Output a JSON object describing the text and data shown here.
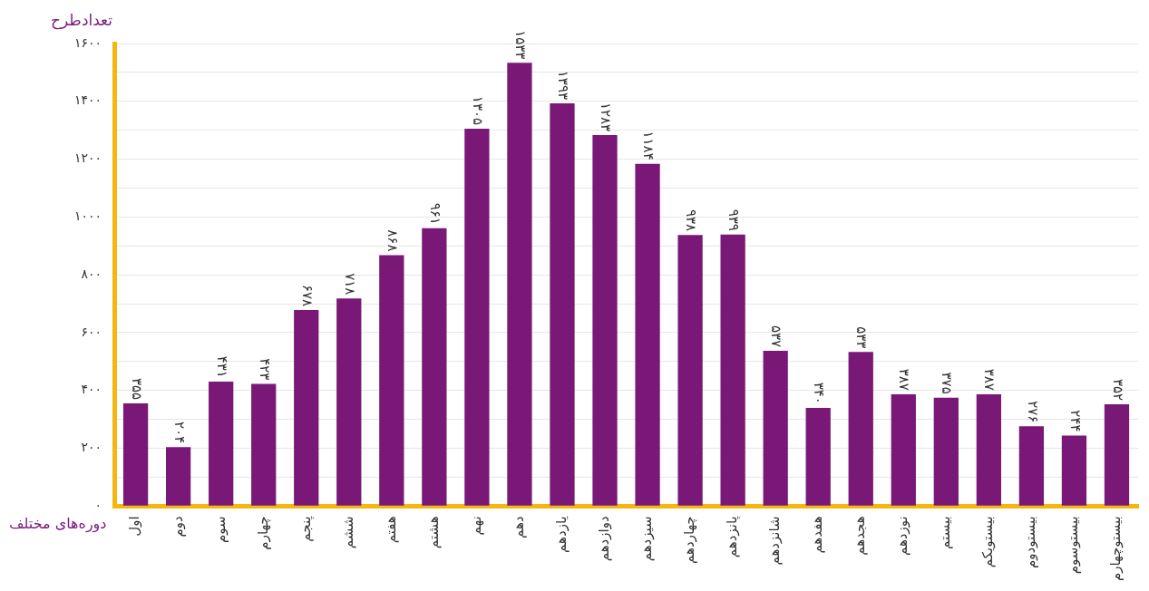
{
  "chart_data": {
    "type": "bar",
    "xlabel": "دوره‌های مختلف",
    "ylabel": "تعدادطرح",
    "categories": [
      "اول",
      "دوم",
      "سوم",
      "چهارم",
      "پنجم",
      "ششم",
      "هفتم",
      "هشتم",
      "نهم",
      "دهم",
      "یازدهم",
      "دوازدهم",
      "سیزدهم",
      "چهاردهم",
      "پانزدهم",
      "شانزدهم",
      "هفدهم",
      "هجدهم",
      "نوزدهم",
      "بیستم",
      "بیستویکم",
      "بیستودوم",
      "بیستوسوم",
      "بیستوچهارم"
    ],
    "values": [
      355,
      204,
      431,
      423,
      678,
      718,
      868,
      961,
      1305,
      1533,
      1393,
      1283,
      1184,
      938,
      939,
      537,
      340,
      533,
      387,
      375,
      387,
      276,
      244,
      352
    ],
    "value_labels": [
      "۳۵۵",
      "۲۰۴",
      "۴۳۱",
      "۴۲۳",
      "۶۷۸",
      "۷۱۸",
      "۸۶۸",
      "۹۶۱",
      "۱۳۰۵",
      "۱۵۳۳",
      "۱۳۹۳",
      "۱۲۸۳",
      "۱۱۸۴",
      "۹۳۸",
      "۹۳۹",
      "۵۳۷",
      "۳۴۰",
      "۵۳۳",
      "۳۸۷",
      "۳۷۵",
      "۳۸۷",
      "۲۷۶",
      "۲۴۴",
      "۳۵۲"
    ],
    "color": "#7a1878",
    "ylim": [
      0,
      1600
    ],
    "yticks": [
      {
        "value": 0,
        "label": "۰"
      },
      {
        "value": 100,
        "label": null
      },
      {
        "value": 200,
        "label": "۲۰۰"
      },
      {
        "value": 300,
        "label": null
      },
      {
        "value": 400,
        "label": "۴۰۰"
      },
      {
        "value": 500,
        "label": null
      },
      {
        "value": 600,
        "label": "۶۰۰"
      },
      {
        "value": 700,
        "label": null
      },
      {
        "value": 800,
        "label": "۸۰۰"
      },
      {
        "value": 900,
        "label": null
      },
      {
        "value": 1000,
        "label": "۱۰۰۰"
      },
      {
        "value": 1100,
        "label": null
      },
      {
        "value": 1200,
        "label": "۱۲۰۰"
      },
      {
        "value": 1300,
        "label": null
      },
      {
        "value": 1400,
        "label": "۱۴۰۰"
      },
      {
        "value": 1500,
        "label": null
      },
      {
        "value": 1600,
        "label": "۱۶۰۰"
      }
    ],
    "grid": "y",
    "legend": false
  }
}
